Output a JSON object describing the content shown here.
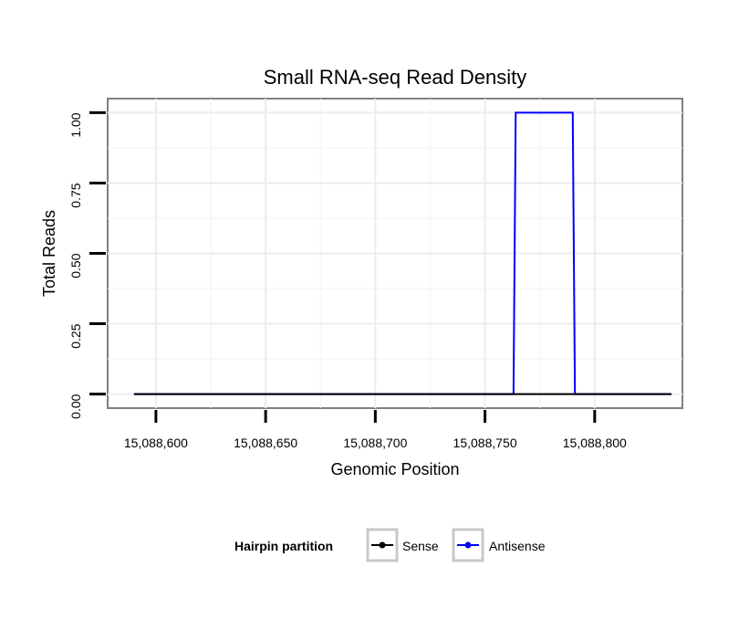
{
  "chart_data": {
    "type": "line",
    "title": "Small RNA-seq Read Density",
    "xlabel": "Genomic Position",
    "ylabel": "Total Reads",
    "xlim": [
      15088578,
      15088840
    ],
    "ylim": [
      -0.05,
      1.05
    ],
    "x_ticks": [
      15088600,
      15088650,
      15088700,
      15088750,
      15088800
    ],
    "x_tick_labels": [
      "15,088,600",
      "15,088,650",
      "15,088,700",
      "15,088,750",
      "15,088,800"
    ],
    "y_ticks": [
      0,
      0.25,
      0.5,
      0.75,
      1
    ],
    "y_tick_labels": [
      "0.00",
      "0.25",
      "0.50",
      "0.75",
      "1.00"
    ],
    "grid": true,
    "series": [
      {
        "name": "Sense",
        "color": "#000000",
        "x": [
          15088590,
          15088835
        ],
        "y": [
          0,
          0
        ]
      },
      {
        "name": "Antisense",
        "color": "#0000ff",
        "x": [
          15088590,
          15088763,
          15088764,
          15088790,
          15088791,
          15088835
        ],
        "y": [
          0,
          0,
          1,
          1,
          0,
          0
        ]
      }
    ],
    "legend": {
      "title": "Hairpin partition",
      "position": "bottom",
      "entries": [
        "Sense",
        "Antisense"
      ]
    }
  }
}
